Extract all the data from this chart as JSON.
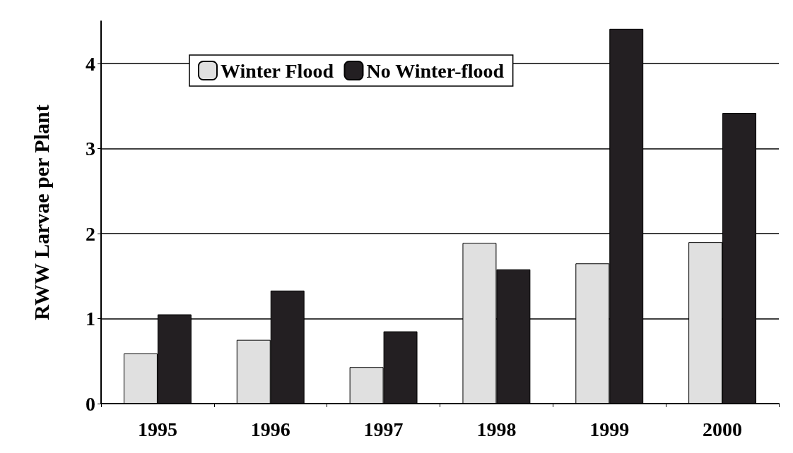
{
  "chart_data": {
    "type": "bar",
    "ylabel": "RWW Larvae per Plant",
    "categories": [
      "1995",
      "1996",
      "1997",
      "1998",
      "1999",
      "2000"
    ],
    "series": [
      {
        "name": "Winter Flood",
        "color": "#e0e0e0",
        "values": [
          0.59,
          0.75,
          0.43,
          1.89,
          1.65,
          1.9
        ]
      },
      {
        "name": "No Winter-flood",
        "color": "#231f22",
        "values": [
          1.05,
          1.33,
          0.85,
          1.58,
          4.41,
          3.42
        ]
      }
    ],
    "ylim": [
      0,
      4.5
    ],
    "yticks": [
      0,
      1,
      2,
      3,
      4
    ],
    "grid": "y",
    "legend": "top"
  }
}
